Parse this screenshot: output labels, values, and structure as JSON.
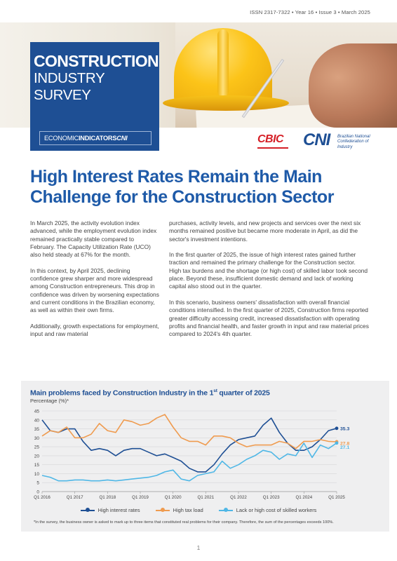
{
  "header": {
    "issn": "ISSN 2317-7322 • Year 16 • Issue 3 • March 2025",
    "title_line1": "CONSTRUCTION",
    "title_line2": "INDUSTRY SURVEY",
    "indicator_prefix": "ECONOMIC",
    "indicator_bold": "INDICATORS",
    "indicator_brand": "CNI"
  },
  "logos": {
    "cbic": "CBIC",
    "cni": "CNI",
    "cni_desc": "Brazilian National Confederation of Industry"
  },
  "headline": "High Interest Rates Remain the Main Challenge for the Construction Sector",
  "body": {
    "left": [
      "In March 2025, the activity evolution index advanced, while the employment evolution index remained practically stable compared to February. The Capacity Utilization Rate (UCO) also held steady at 67% for the month.",
      "In this context, by April 2025, declining confidence grew sharper and more widespread among Construction entrepreneurs. This drop in confidence was driven by worsening expectations and current conditions in the Brazilian economy, as well as within their own firms.",
      "Additionally, growth expectations for employment, input and raw material"
    ],
    "right": [
      "purchases, activity levels, and new projects and services over the next six months remained positive but became more moderate in April, as did the sector's investment intentions.",
      "In the first quarter of 2025, the issue of high interest rates gained further traction and remained the primary challenge for the Construction sector. High tax burdens and the shortage (or high cost) of skilled labor took second place. Beyond these, insufficient domestic demand and lack of working capital also stood out in the quarter.",
      "In this scenario, business owners' dissatisfaction with overall financial conditions intensified. In the first quarter of 2025, Construction firms reported greater difficulty accessing credit, increased dissatisfaction with operating profits and financial health, and faster growth in input and raw material prices compared to 2024's 4th quarter."
    ]
  },
  "chart": {
    "title_main": "Main problems faced by Construction Industry in the 1",
    "title_sup": "st",
    "title_end": " quarter of 2025",
    "subtitle": "Percentage (%)*",
    "footnote": "*In the survey, the business owner is asked to mark up to three items that constituted real problems for their company. Therefore, the sum of the percentages exceeds 100%.",
    "colors": {
      "interest": "#1e4f94",
      "tax": "#ef9b4f",
      "labor": "#4fb7e6"
    }
  },
  "chart_data": {
    "type": "line",
    "x": [
      "Q1 2016",
      "Q2 2016",
      "Q3 2016",
      "Q4 2016",
      "Q1 2017",
      "Q2 2017",
      "Q3 2017",
      "Q4 2017",
      "Q1 2018",
      "Q2 2018",
      "Q3 2018",
      "Q4 2018",
      "Q1 2019",
      "Q2 2019",
      "Q3 2019",
      "Q4 2019",
      "Q1 2020",
      "Q2 2020",
      "Q3 2020",
      "Q4 2020",
      "Q1 2021",
      "Q2 2021",
      "Q3 2021",
      "Q4 2021",
      "Q1 2022",
      "Q2 2022",
      "Q3 2022",
      "Q4 2022",
      "Q1 2023",
      "Q2 2023",
      "Q3 2023",
      "Q4 2023",
      "Q1 2024",
      "Q2 2024",
      "Q3 2024",
      "Q4 2024",
      "Q1 2025"
    ],
    "tick_labels": [
      "Q1 2016",
      "Q1 2017",
      "Q1 2018",
      "Q1 2019",
      "Q1 2020",
      "Q1 2021",
      "Q1 2022",
      "Q1 2023",
      "Q1 2024",
      "Q1 2025"
    ],
    "series": [
      {
        "name": "High interest rates",
        "key": "interest",
        "values": [
          40,
          34,
          33,
          35,
          35,
          28,
          23,
          24,
          23,
          20,
          23,
          24,
          24,
          22,
          20,
          21,
          19,
          17,
          13,
          11,
          11,
          15,
          21,
          26,
          29,
          30,
          31,
          37,
          41,
          33,
          27,
          23,
          23,
          25,
          29,
          34,
          35.3
        ]
      },
      {
        "name": "High tax load",
        "key": "tax",
        "values": [
          31,
          34,
          33,
          36,
          30,
          30,
          32,
          38,
          34,
          33,
          40,
          39,
          37,
          38,
          41,
          43,
          36,
          30,
          28,
          28,
          26,
          31,
          31,
          30,
          27,
          25,
          26,
          26,
          26,
          28,
          27,
          24,
          28,
          28,
          29,
          28,
          27.8
        ]
      },
      {
        "name": "Lack or high cost of skilled workers",
        "key": "labor",
        "values": [
          9,
          8,
          6,
          6,
          6.5,
          6.5,
          6,
          6,
          6.5,
          6,
          6.5,
          7,
          7.5,
          8,
          9,
          11,
          12,
          7,
          6,
          9,
          10,
          11,
          17,
          13,
          15,
          18,
          20,
          23,
          22,
          18,
          21,
          20,
          27,
          19,
          26,
          24,
          27.1
        ]
      }
    ],
    "end_labels": [
      "35.3",
      "27.8",
      "27.1"
    ],
    "ylim": [
      0,
      45
    ],
    "yticks": [
      0,
      5,
      10,
      15,
      20,
      25,
      30,
      35,
      40,
      45
    ],
    "grid": "horizontal",
    "legend": "bottom"
  },
  "page_number": "1"
}
